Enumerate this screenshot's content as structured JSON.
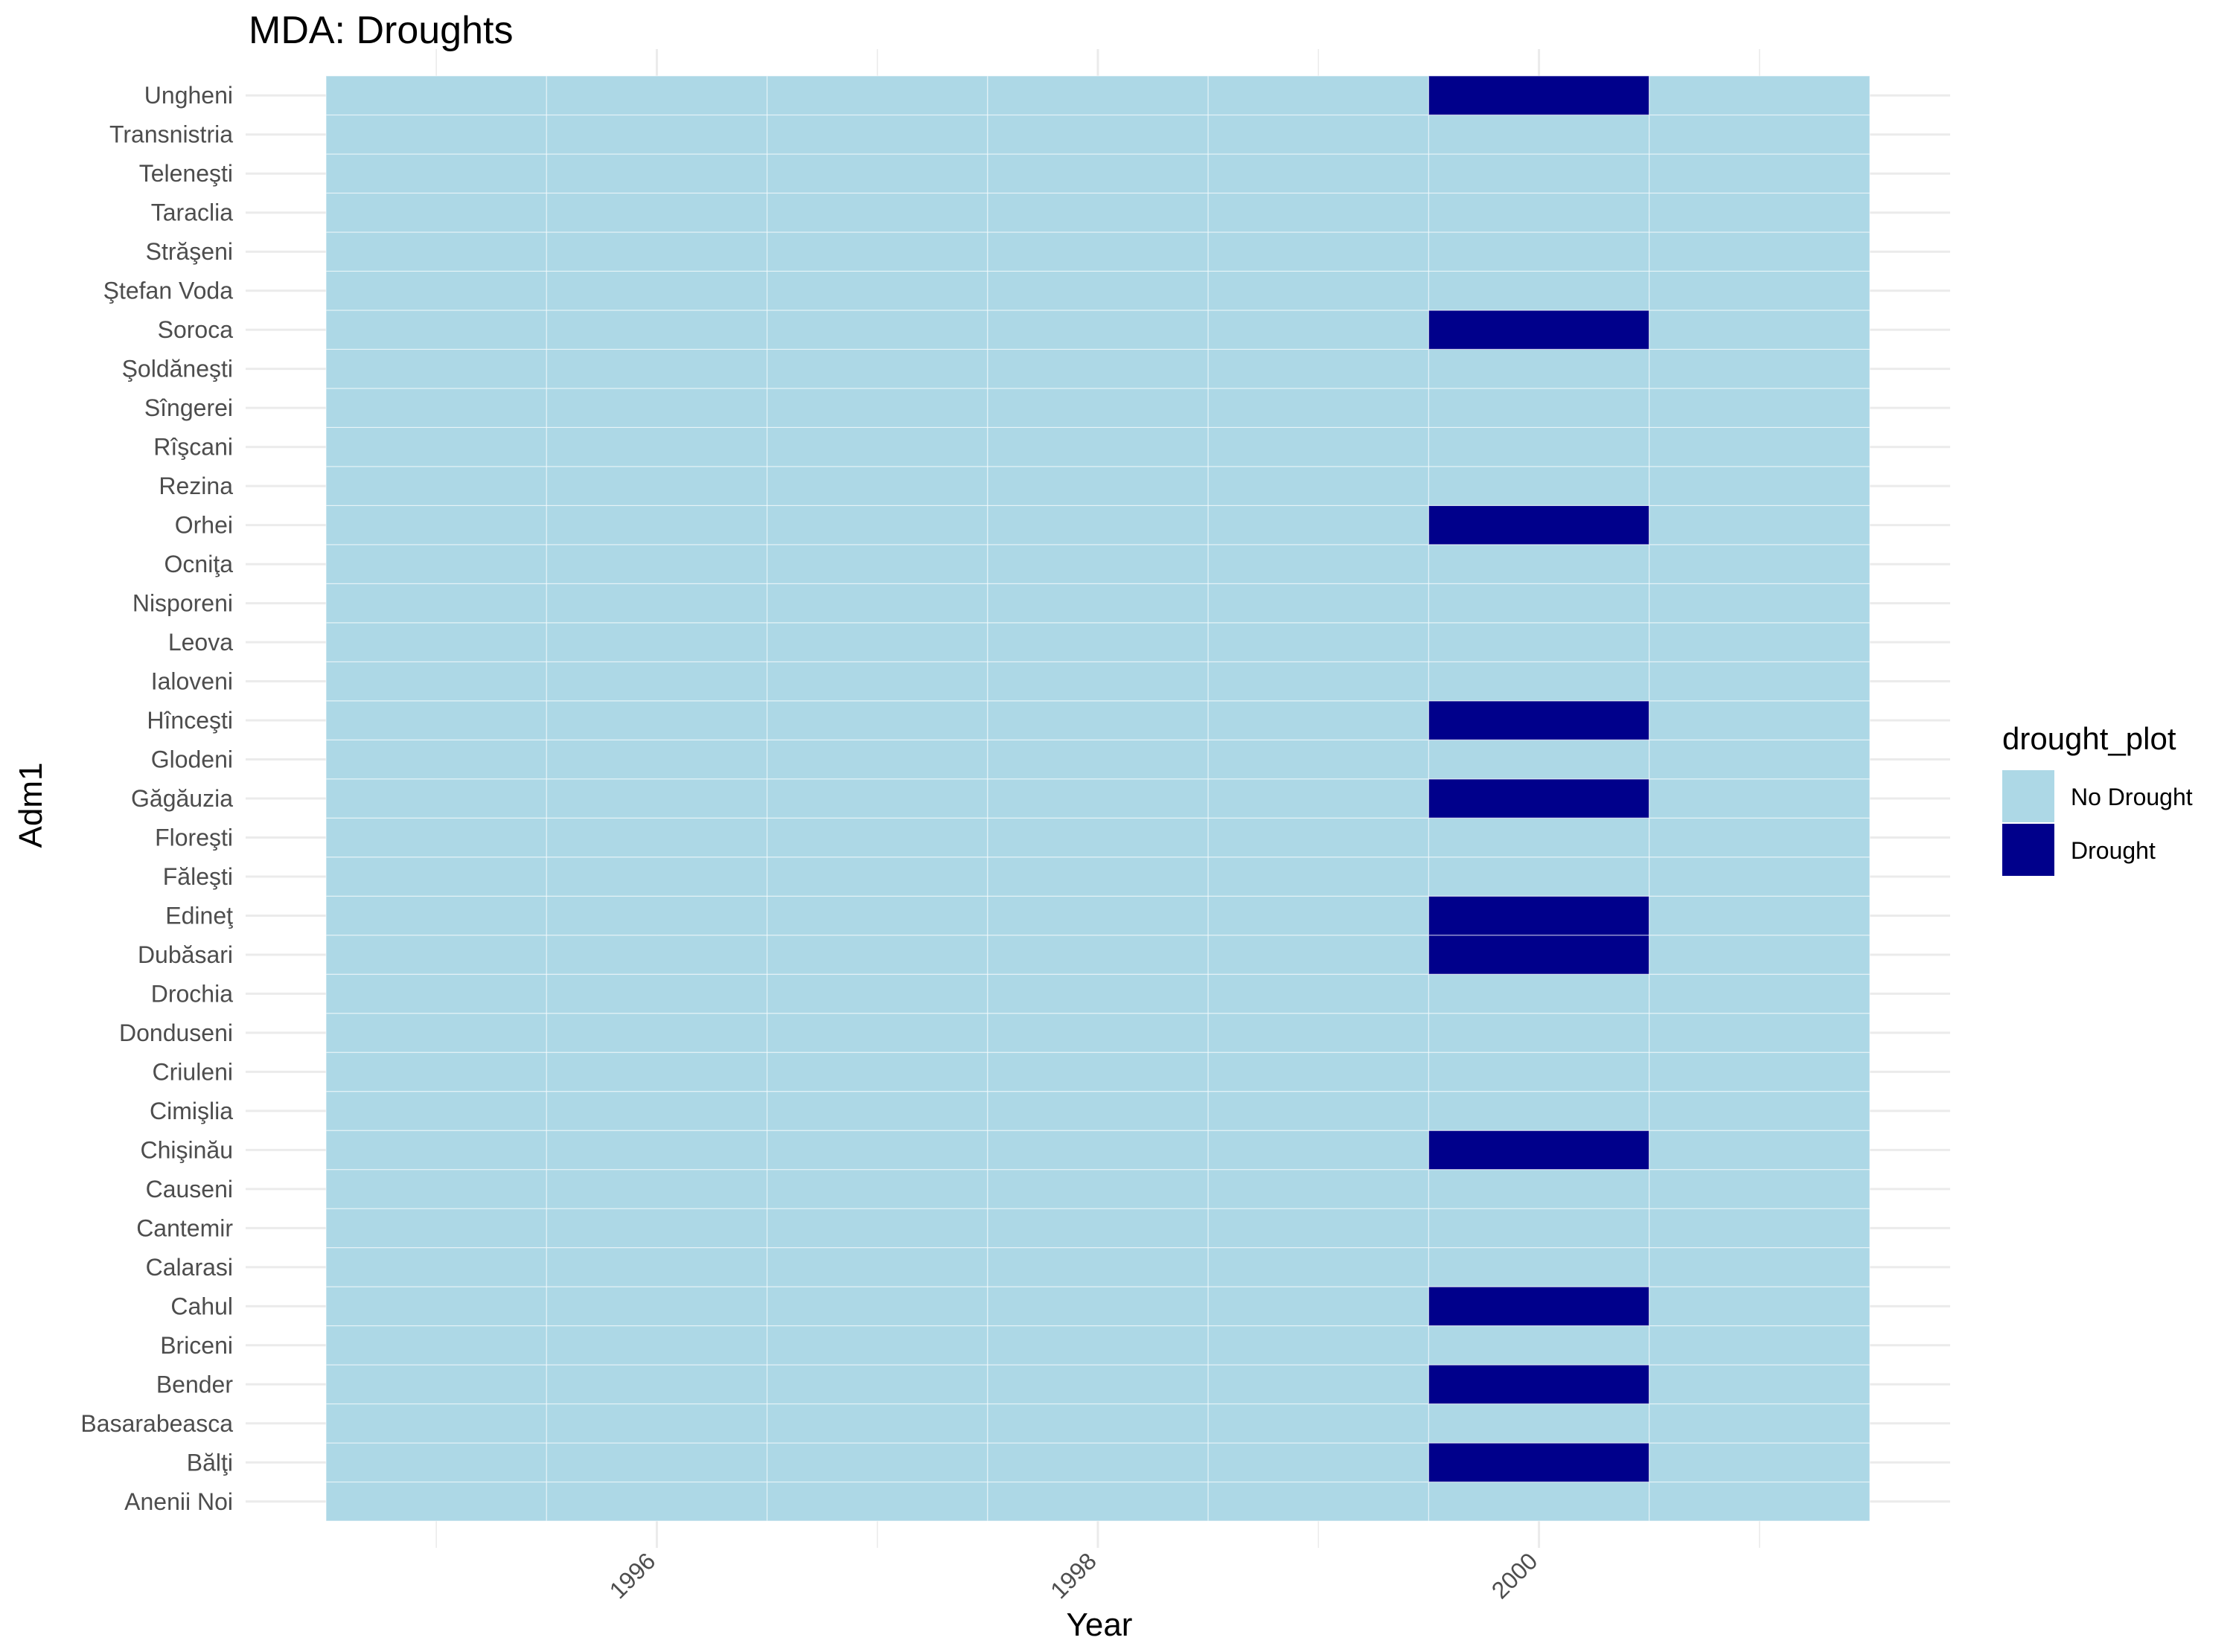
{
  "chart_data": {
    "type": "heatmap",
    "title": "MDA: Droughts",
    "xlabel": "Year",
    "ylabel": "Adm1",
    "x": [
      1995,
      1996,
      1997,
      1998,
      1999,
      2000,
      2001
    ],
    "x_ticks": [
      1996,
      1998,
      2000
    ],
    "x_tick_labels": [
      "1996",
      "1998",
      "2000"
    ],
    "x_tick_rotation_deg": 45,
    "xlim": [
      1994.5,
      2001.5
    ],
    "categories": [
      "Anenii Noi",
      "Bălţi",
      "Basarabeasca",
      "Bender",
      "Briceni",
      "Cahul",
      "Calarasi",
      "Cantemir",
      "Causeni",
      "Chişinău",
      "Cimişlia",
      "Criuleni",
      "Donduseni",
      "Drochia",
      "Dubăsari",
      "Edineţ",
      "Făleşti",
      "Floreşti",
      "Găgăuzia",
      "Glodeni",
      "Hînceşti",
      "Ialoveni",
      "Leova",
      "Nisporeni",
      "Ocniţa",
      "Orhei",
      "Rezina",
      "Rîşcani",
      "Sîngerei",
      "Şoldăneşti",
      "Soroca",
      "Ştefan Voda",
      "Străşeni",
      "Taraclia",
      "Teleneşti",
      "Transnistria",
      "Ungheni"
    ],
    "drought_year": 2000,
    "drought_regions": [
      "Ungheni",
      "Soroca",
      "Orhei",
      "Hînceşti",
      "Găgăuzia",
      "Edineţ",
      "Dubăsari",
      "Chişinău",
      "Cahul",
      "Bender",
      "Bălţi"
    ],
    "legend": {
      "title": "drought_plot",
      "placement": "right",
      "entries": [
        {
          "label": "No Drought",
          "color": "#add8e6"
        },
        {
          "label": "Drought",
          "color": "#00008b"
        }
      ]
    },
    "grid": true
  }
}
